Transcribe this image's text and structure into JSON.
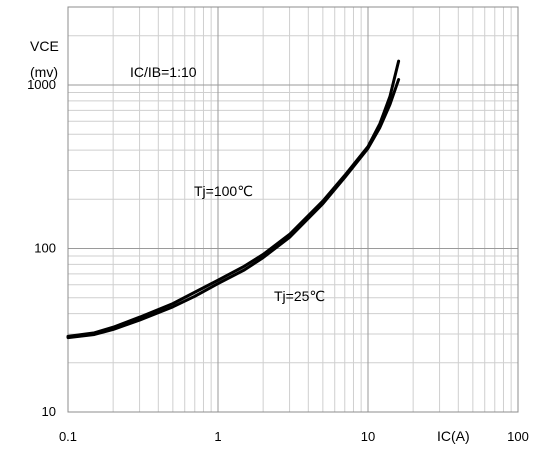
{
  "chart_data": {
    "type": "line",
    "x_scale": "log",
    "y_scale": "log",
    "grid": true,
    "xlim": [
      0.1,
      100
    ],
    "ylim": [
      10,
      3000
    ],
    "xlabel": "IC(A)",
    "ylabel_line1": "VCE",
    "ylabel_line2": "(mv)",
    "condition_label": "IC/IB=1:10",
    "x_ticks": [
      {
        "value": 0.1,
        "label": "0.1"
      },
      {
        "value": 1,
        "label": "1"
      },
      {
        "value": 10,
        "label": "10"
      },
      {
        "value": 100,
        "label": "100"
      }
    ],
    "y_ticks": [
      {
        "value": 10,
        "label": "10"
      },
      {
        "value": 100,
        "label": "100"
      },
      {
        "value": 1000,
        "label": "1000"
      }
    ],
    "series": [
      {
        "name": "Tj=100℃",
        "color": "#000000",
        "x": [
          0.1,
          0.15,
          0.2,
          0.3,
          0.5,
          0.7,
          1,
          1.5,
          2,
          3,
          5,
          7,
          10,
          12,
          14,
          16
        ],
        "y": [
          29,
          30.5,
          33,
          38,
          46,
          54,
          64,
          78,
          92,
          122,
          195,
          280,
          420,
          580,
          850,
          1400
        ]
      },
      {
        "name": "Tj=25℃",
        "color": "#000000",
        "x": [
          0.1,
          0.15,
          0.2,
          0.3,
          0.5,
          0.7,
          1,
          1.5,
          2,
          3,
          5,
          7,
          10,
          12,
          14,
          16
        ],
        "y": [
          28.5,
          29.8,
          32,
          36.5,
          44,
          51,
          61,
          74,
          88,
          117,
          188,
          272,
          410,
          550,
          760,
          1080
        ]
      }
    ]
  }
}
